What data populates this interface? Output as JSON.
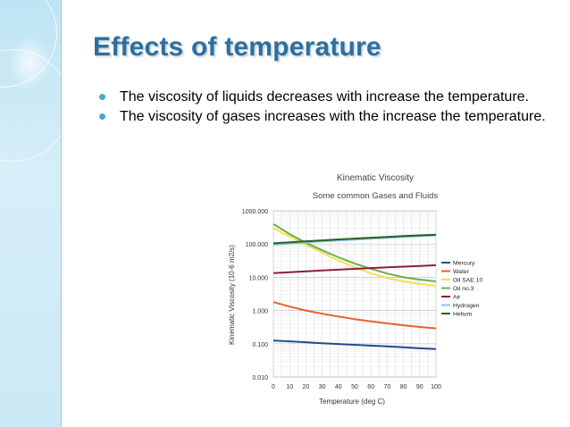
{
  "slide": {
    "title": "Effects of temperature",
    "bullets": [
      "The viscosity of liquids decreases with increase the temperature.",
      "The viscosity of gases increases with the increase the temperature."
    ],
    "accent_color": "#2f6f9e",
    "bullet_color": "#47a9d6"
  },
  "chart_data": {
    "type": "line",
    "title": "Kinematic Viscosity",
    "subtitle": "Some common Gases and Fluids",
    "xlabel": "Temperature (deg C)",
    "ylabel": "Kinematic Viscosity (10-6 m2/s)",
    "y_scale": "log",
    "xlim": [
      0,
      100
    ],
    "ylim": [
      0.01,
      1000
    ],
    "x_ticks": [
      "0",
      "10",
      "20",
      "30",
      "40",
      "50",
      "60",
      "70",
      "80",
      "90",
      "100"
    ],
    "y_ticks": [
      "0.010",
      "0.100",
      "1.000",
      "10.000",
      "100.000",
      "1000.000"
    ],
    "legend_position": "right",
    "grid": true,
    "x": [
      0,
      10,
      20,
      30,
      40,
      50,
      60,
      70,
      80,
      90,
      100
    ],
    "series": [
      {
        "name": "Mercury",
        "color": "#1f4e8c",
        "values": [
          0.125,
          0.118,
          0.111,
          0.104,
          0.098,
          0.093,
          0.088,
          0.083,
          0.078,
          0.073,
          0.069
        ]
      },
      {
        "name": "Water",
        "color": "#e8602c",
        "values": [
          1.79,
          1.31,
          1.0,
          0.8,
          0.66,
          0.55,
          0.47,
          0.41,
          0.36,
          0.32,
          0.29
        ]
      },
      {
        "name": "Oil SAE 10",
        "color": "#f2e14a",
        "values": [
          300,
          170,
          95,
          55,
          32,
          20,
          13,
          9.5,
          7.5,
          6.3,
          5.5
        ]
      },
      {
        "name": "Oil no.3",
        "color": "#6ab04c",
        "values": [
          400,
          200,
          110,
          65,
          40,
          26,
          18,
          13,
          10,
          8.5,
          7.5
        ]
      },
      {
        "name": "Air",
        "color": "#8b1e3f",
        "values": [
          13.3,
          14.1,
          15.1,
          16.0,
          16.9,
          17.9,
          18.9,
          19.9,
          20.9,
          22.0,
          23.0
        ]
      },
      {
        "name": "Hydrogen",
        "color": "#86c5e8",
        "values": [
          95,
          103,
          111,
          120,
          128,
          136,
          145,
          154,
          163,
          172,
          181
        ]
      },
      {
        "name": "Helium",
        "color": "#2e5e1e",
        "values": [
          105,
          113,
          121,
          129,
          138,
          146,
          155,
          164,
          173,
          182,
          191
        ]
      }
    ]
  }
}
